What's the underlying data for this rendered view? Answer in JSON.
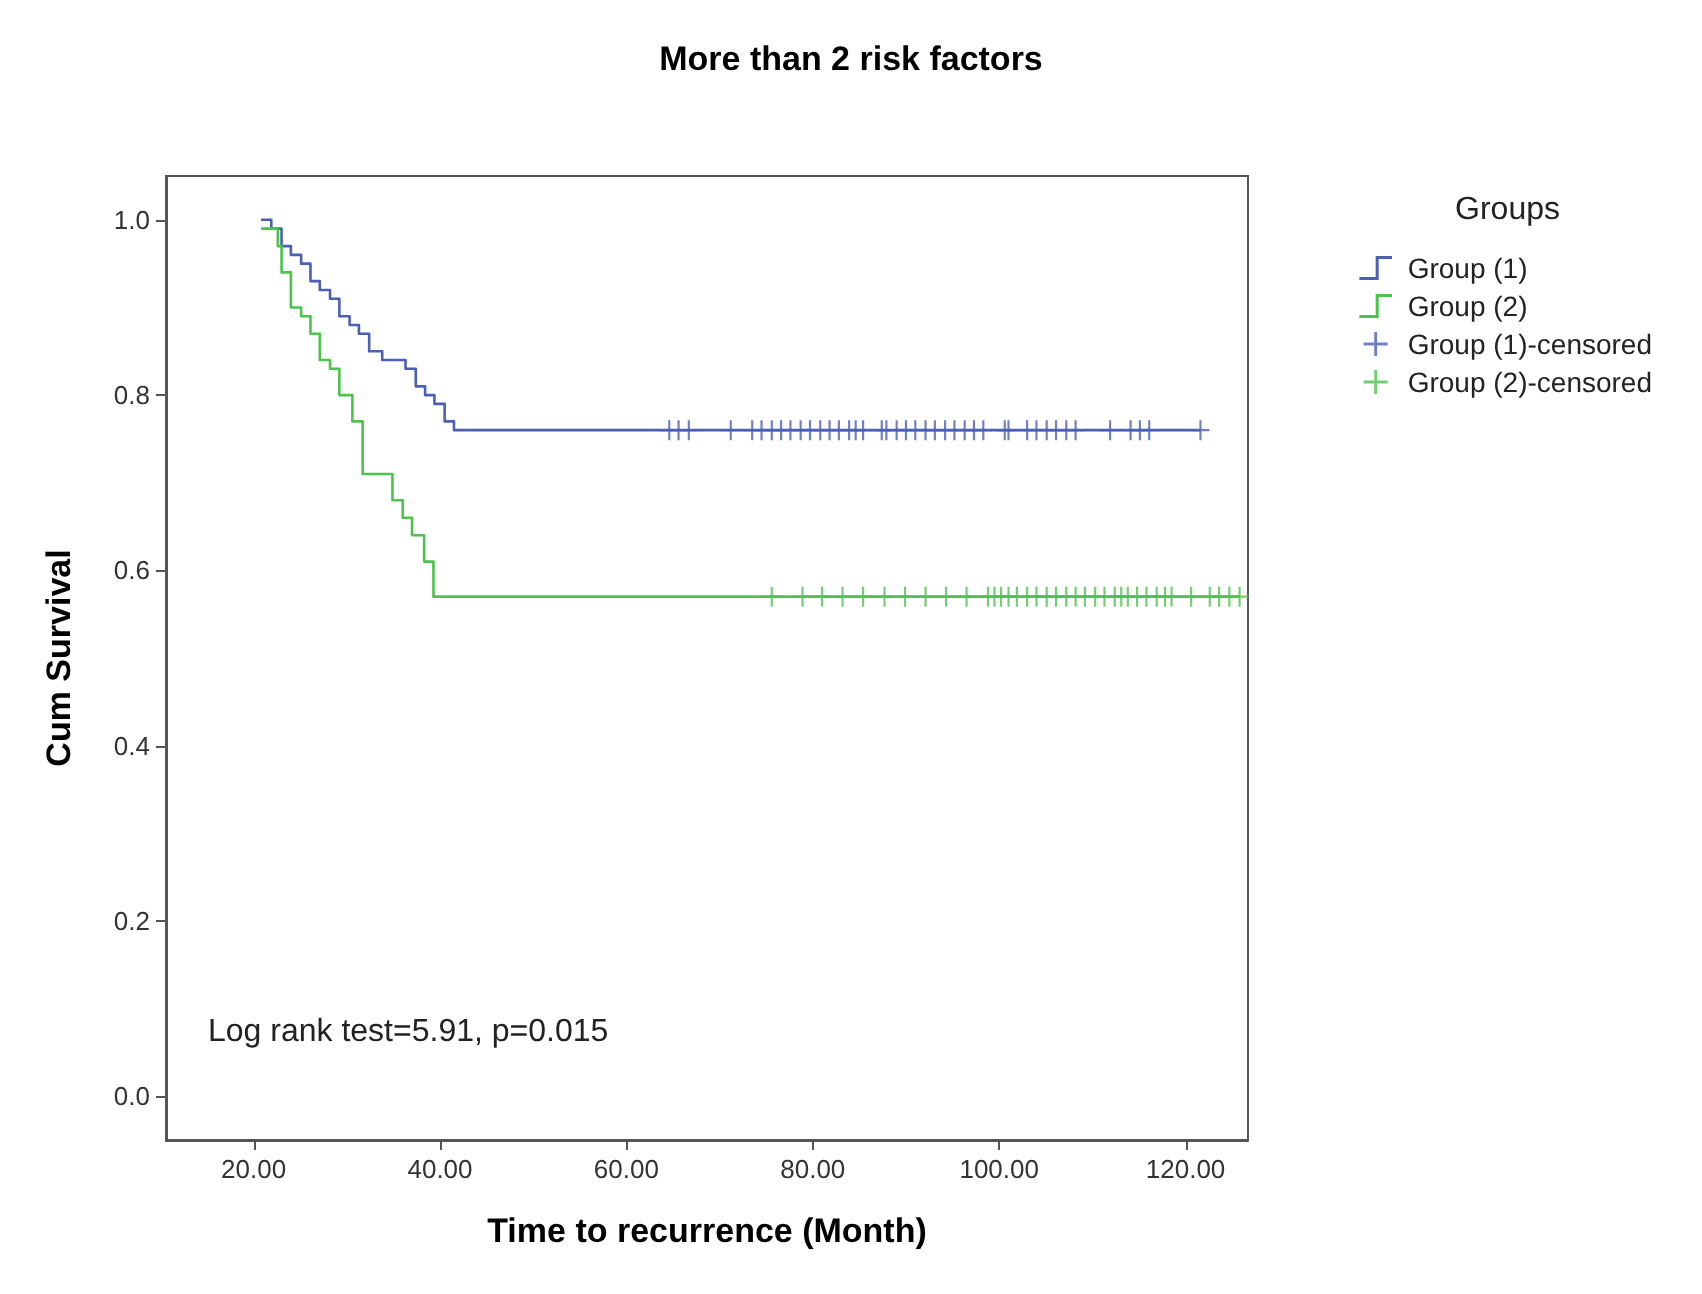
{
  "chart_data": {
    "type": "step",
    "title": "More than 2 risk factors",
    "xlabel": "Time to recurrence (Month)",
    "ylabel": "Cum Survival",
    "legend_title": "Groups",
    "legend": "right",
    "grid": false,
    "xlim": [
      10.6,
      126.7
    ],
    "ylim": [
      -0.05,
      1.05
    ],
    "xticks": [
      {
        "value": 20,
        "label": "20.00"
      },
      {
        "value": 40,
        "label": "40.00"
      },
      {
        "value": 60,
        "label": "60.00"
      },
      {
        "value": 80,
        "label": "80.00"
      },
      {
        "value": 100,
        "label": "100.00"
      },
      {
        "value": 120,
        "label": "120.00"
      }
    ],
    "yticks": [
      {
        "value": 0,
        "label": "0.0"
      },
      {
        "value": 0.2,
        "label": "0.2"
      },
      {
        "value": 0.4,
        "label": "0.4"
      },
      {
        "value": 0.6,
        "label": "0.6"
      },
      {
        "value": 0.8,
        "label": "0.8"
      },
      {
        "value": 1,
        "label": "1.0"
      }
    ],
    "annotations": [
      "Log rank test=5.91, p=0.015"
    ],
    "series": [
      {
        "name": "Group (1)",
        "color": "#4b5fb5",
        "marker": "none",
        "x": [
          20.8,
          21.9,
          23.0,
          24.0,
          25.1,
          26.1,
          27.1,
          28.2,
          29.2,
          30.3,
          31.3,
          32.4,
          33.8,
          36.3,
          37.4,
          38.4,
          39.4,
          40.5,
          41.5,
          121.6
        ],
        "values": [
          1.0,
          0.99,
          0.97,
          0.96,
          0.95,
          0.93,
          0.92,
          0.91,
          0.89,
          0.88,
          0.87,
          0.85,
          0.84,
          0.83,
          0.81,
          0.8,
          0.79,
          0.77,
          0.76,
          0.76
        ]
      },
      {
        "name": "Group (2)",
        "color": "#4cc34c",
        "marker": "none",
        "x": [
          20.8,
          22.6,
          23.0,
          24.0,
          25.1,
          26.1,
          27.1,
          28.2,
          29.2,
          30.6,
          31.7,
          34.9,
          36.0,
          37.0,
          38.3,
          39.3,
          125.8
        ],
        "values": [
          0.99,
          0.97,
          0.94,
          0.9,
          0.89,
          0.87,
          0.84,
          0.83,
          0.8,
          0.77,
          0.71,
          0.68,
          0.66,
          0.64,
          0.61,
          0.57,
          0.57
        ]
      },
      {
        "name": "Group (1)-censored",
        "type": "scatter",
        "color": "#4b5fb5",
        "marker": "cross",
        "x": [
          64.6,
          65.6,
          66.7,
          71.2,
          73.5,
          74.5,
          75.6,
          76.6,
          77.6,
          78.7,
          79.7,
          80.8,
          81.8,
          82.8,
          83.9,
          84.6,
          85.4,
          87.4,
          87.9,
          89.0,
          90.0,
          91.0,
          92.1,
          93.1,
          94.2,
          95.2,
          96.3,
          97.3,
          98.3,
          100.6,
          101.0,
          103.0,
          104.0,
          105.1,
          106.1,
          107.2,
          108.2,
          111.9,
          114.1,
          115.1,
          116.1,
          121.6
        ],
        "values": [
          0.76,
          0.76,
          0.76,
          0.76,
          0.76,
          0.76,
          0.76,
          0.76,
          0.76,
          0.76,
          0.76,
          0.76,
          0.76,
          0.76,
          0.76,
          0.76,
          0.76,
          0.76,
          0.76,
          0.76,
          0.76,
          0.76,
          0.76,
          0.76,
          0.76,
          0.76,
          0.76,
          0.76,
          0.76,
          0.76,
          0.76,
          0.76,
          0.76,
          0.76,
          0.76,
          0.76,
          0.76,
          0.76,
          0.76,
          0.76,
          0.76,
          0.76
        ]
      },
      {
        "name": "Group (2)-censored",
        "type": "scatter",
        "color": "#4cc34c",
        "marker": "cross",
        "x": [
          75.6,
          78.9,
          81.0,
          83.2,
          85.4,
          87.7,
          89.9,
          92.1,
          94.3,
          96.5,
          98.8,
          99.5,
          100.2,
          101.0,
          101.9,
          103.0,
          104.0,
          105.1,
          106.1,
          107.2,
          108.2,
          109.2,
          110.3,
          111.3,
          112.4,
          113.1,
          113.8,
          114.8,
          115.8,
          116.9,
          117.8,
          118.5,
          120.6,
          122.6,
          123.6,
          124.7,
          125.8
        ],
        "values": [
          0.57,
          0.57,
          0.57,
          0.57,
          0.57,
          0.57,
          0.57,
          0.57,
          0.57,
          0.57,
          0.57,
          0.57,
          0.57,
          0.57,
          0.57,
          0.57,
          0.57,
          0.57,
          0.57,
          0.57,
          0.57,
          0.57,
          0.57,
          0.57,
          0.57,
          0.57,
          0.57,
          0.57,
          0.57,
          0.57,
          0.57,
          0.57,
          0.57,
          0.57,
          0.57,
          0.57,
          0.57
        ]
      }
    ]
  }
}
